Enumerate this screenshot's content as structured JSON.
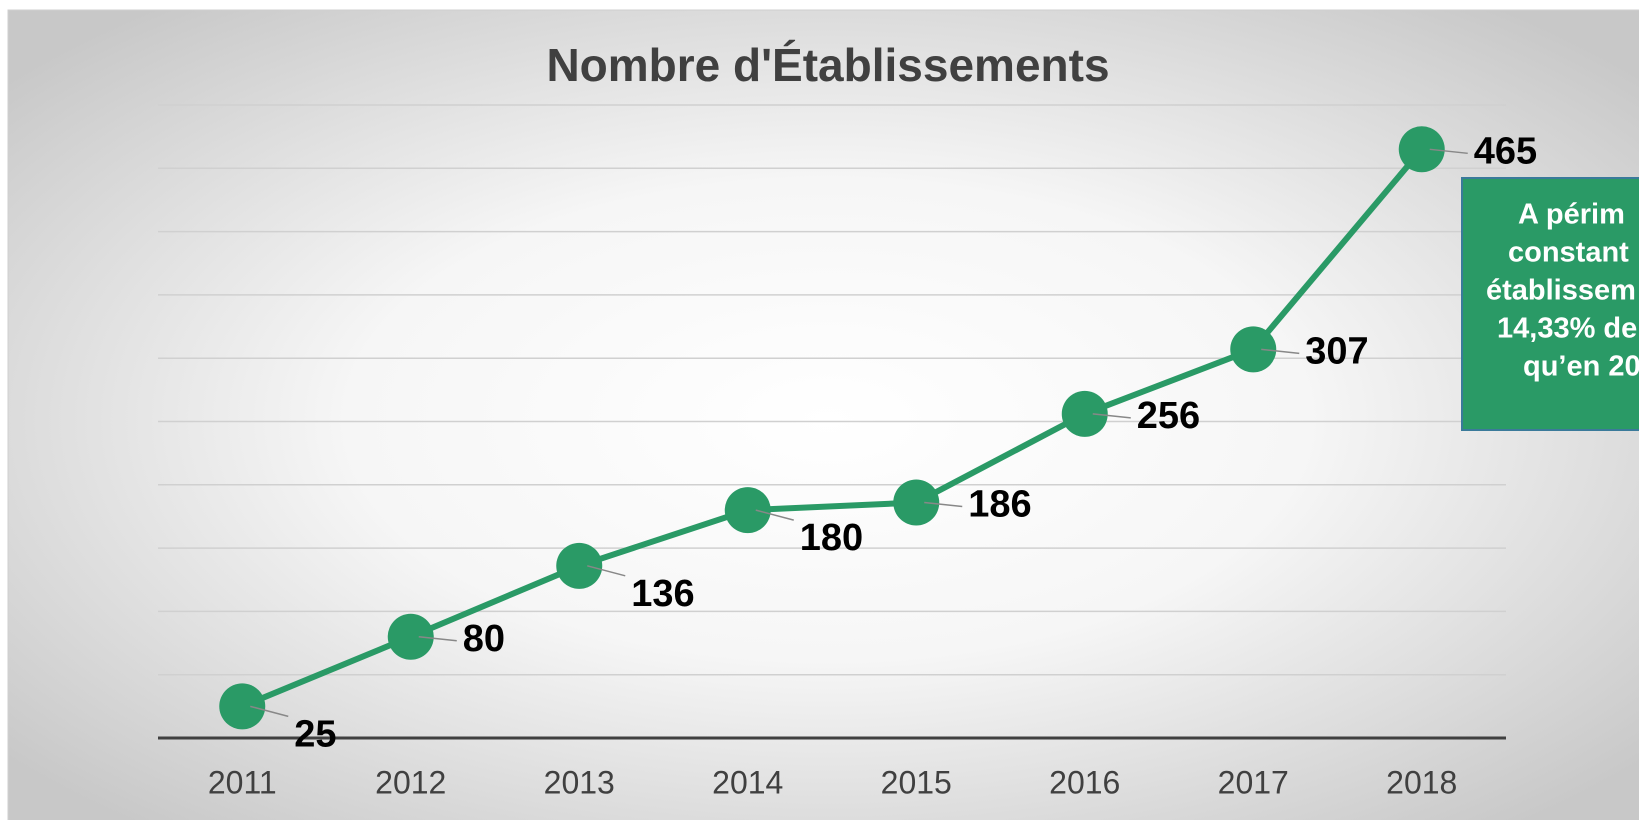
{
  "chart_data": {
    "type": "line",
    "title": "Nombre d'Établissements",
    "categories": [
      "2011",
      "2012",
      "2013",
      "2014",
      "2015",
      "2016",
      "2017",
      "2018"
    ],
    "series": [
      {
        "name": "Nombre d'Établissements",
        "color": "#2a9a66",
        "values": [
          25,
          80,
          136,
          180,
          186,
          256,
          307,
          465
        ]
      }
    ],
    "ylim": [
      0,
      500
    ],
    "yticks": [
      0,
      50,
      100,
      150,
      200,
      250,
      300,
      350,
      400,
      450,
      500
    ],
    "grid": true,
    "annotation": [
      "A périm",
      "constant",
      "établissem",
      "14,33% de",
      "qu’en 20"
    ]
  }
}
